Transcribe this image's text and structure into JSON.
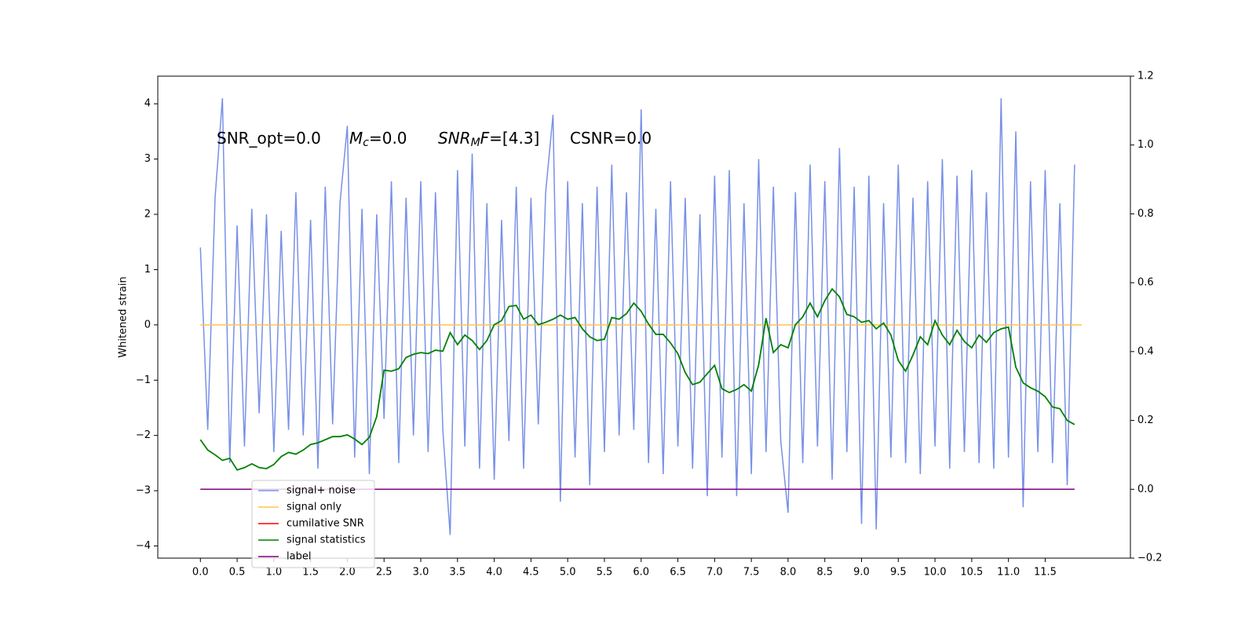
{
  "chart_data": {
    "type": "line",
    "ylabel": "Whitened strain",
    "annotations": [
      [
        {
          "text": "SNR_opt=0.0"
        }
      ],
      [
        {
          "text": "M",
          "style": "italic"
        },
        {
          "text": "c",
          "style": "sub"
        },
        {
          "text": "=0.0"
        }
      ],
      [
        {
          "text": "SNR",
          "style": "italic"
        },
        {
          "text": "M",
          "style": "sub"
        },
        {
          "text": "F",
          "style": "italic"
        },
        {
          "text": "=[4.3]"
        }
      ],
      [
        {
          "text": "CSNR=0.0"
        }
      ]
    ],
    "x": [
      0.0,
      0.1,
      0.2,
      0.3,
      0.4,
      0.5,
      0.6,
      0.7,
      0.8,
      0.9,
      1.0,
      1.1,
      1.2,
      1.3,
      1.4,
      1.5,
      1.6,
      1.7,
      1.8,
      1.9,
      2.0,
      2.1,
      2.2,
      2.3,
      2.4,
      2.5,
      2.6,
      2.7,
      2.8,
      2.9,
      3.0,
      3.1,
      3.2,
      3.3,
      3.4,
      3.5,
      3.6,
      3.7,
      3.8,
      3.9,
      4.0,
      4.1,
      4.2,
      4.3,
      4.4,
      4.5,
      4.6,
      4.7,
      4.8,
      4.9,
      5.0,
      5.1,
      5.2,
      5.3,
      5.4,
      5.5,
      5.6,
      5.7,
      5.8,
      5.9,
      6.0,
      6.1,
      6.2,
      6.3,
      6.4,
      6.5,
      6.6,
      6.7,
      6.8,
      6.9,
      7.0,
      7.1,
      7.2,
      7.3,
      7.4,
      7.5,
      7.6,
      7.7,
      7.8,
      7.9,
      8.0,
      8.1,
      8.2,
      8.3,
      8.4,
      8.5,
      8.6,
      8.7,
      8.8,
      8.9,
      9.0,
      9.1,
      9.2,
      9.3,
      9.4,
      9.5,
      9.6,
      9.7,
      9.8,
      9.9,
      10.0,
      10.1,
      10.2,
      10.3,
      10.4,
      10.5,
      10.6,
      10.7,
      10.8,
      10.9,
      11.0,
      11.1,
      11.2,
      11.3,
      11.4,
      11.5,
      11.6,
      11.7,
      11.8,
      11.9
    ],
    "series": [
      {
        "name": "signal+ noise",
        "color": "#7890e6",
        "axis": "y",
        "values": [
          1.4,
          -1.9,
          2.3,
          4.1,
          -2.5,
          1.8,
          -2.2,
          2.1,
          -1.6,
          2.0,
          -2.3,
          1.7,
          -1.9,
          2.4,
          -2.0,
          1.9,
          -2.6,
          2.5,
          -1.8,
          2.2,
          3.6,
          -2.4,
          2.1,
          -2.7,
          2.0,
          -1.7,
          2.6,
          -2.5,
          2.3,
          -2.0,
          2.6,
          -2.3,
          2.4,
          -1.9,
          -3.8,
          2.8,
          -2.2,
          3.1,
          -2.6,
          2.2,
          -2.8,
          1.9,
          -2.1,
          2.5,
          -2.6,
          2.3,
          -1.8,
          2.4,
          3.8,
          -3.2,
          2.6,
          -2.4,
          2.2,
          -2.9,
          2.5,
          -2.3,
          2.9,
          -2.0,
          2.4,
          -1.9,
          3.9,
          -2.5,
          2.1,
          -2.7,
          2.6,
          -2.2,
          2.3,
          -2.6,
          2.0,
          -3.1,
          2.7,
          -2.4,
          2.8,
          -3.1,
          2.2,
          -2.7,
          3.0,
          -2.3,
          2.5,
          -2.1,
          -3.4,
          2.4,
          -2.5,
          2.9,
          -2.2,
          2.6,
          -2.8,
          3.2,
          -2.3,
          2.5,
          -3.6,
          2.7,
          -3.7,
          2.2,
          -2.4,
          2.9,
          -2.5,
          2.3,
          -2.7,
          2.6,
          -2.2,
          3.0,
          -2.6,
          2.7,
          -2.3,
          2.8,
          -2.5,
          2.4,
          -2.6,
          4.1,
          -2.4,
          3.5,
          -3.3,
          2.6,
          -2.3,
          2.8,
          -2.5,
          2.2,
          -2.9,
          2.9
        ]
      },
      {
        "name": "signal only",
        "color": "#ffc44d",
        "axis": "y",
        "x": [
          0.0,
          12.0
        ],
        "values": [
          0,
          0
        ]
      },
      {
        "name": "cumilative SNR",
        "color": "#ff0000",
        "axis": "y2"
      },
      {
        "name": "signal statistics",
        "color": "#008000",
        "axis": "y2",
        "values": [
          0.144,
          0.114,
          0.1,
          0.084,
          0.09,
          0.056,
          0.063,
          0.074,
          0.063,
          0.06,
          0.072,
          0.095,
          0.107,
          0.102,
          0.114,
          0.13,
          0.135,
          0.144,
          0.153,
          0.153,
          0.158,
          0.146,
          0.13,
          0.151,
          0.211,
          0.346,
          0.343,
          0.35,
          0.383,
          0.392,
          0.397,
          0.394,
          0.404,
          0.401,
          0.455,
          0.42,
          0.448,
          0.432,
          0.406,
          0.432,
          0.478,
          0.49,
          0.531,
          0.534,
          0.494,
          0.506,
          0.478,
          0.485,
          0.494,
          0.506,
          0.494,
          0.499,
          0.466,
          0.443,
          0.432,
          0.436,
          0.499,
          0.494,
          0.51,
          0.541,
          0.517,
          0.48,
          0.45,
          0.45,
          0.425,
          0.394,
          0.339,
          0.304,
          0.311,
          0.336,
          0.36,
          0.292,
          0.281,
          0.29,
          0.304,
          0.285,
          0.362,
          0.497,
          0.397,
          0.42,
          0.411,
          0.478,
          0.501,
          0.541,
          0.501,
          0.548,
          0.582,
          0.559,
          0.508,
          0.501,
          0.485,
          0.49,
          0.466,
          0.483,
          0.448,
          0.374,
          0.343,
          0.39,
          0.443,
          0.42,
          0.49,
          0.448,
          0.42,
          0.462,
          0.429,
          0.411,
          0.448,
          0.427,
          0.455,
          0.466,
          0.471,
          0.355,
          0.309,
          0.295,
          0.285,
          0.269,
          0.239,
          0.234,
          0.2,
          0.188
        ]
      },
      {
        "name": "label",
        "color": "#800080",
        "axis": "y2",
        "x": [
          0.0,
          11.9
        ],
        "values": [
          0,
          0
        ]
      }
    ],
    "xlim": [
      -0.58,
      12.66
    ],
    "ylim": [
      -4.22,
      4.5
    ],
    "y2lim": [
      -0.2,
      1.2
    ],
    "xticks": [
      {
        "value": 0,
        "label": "0.0"
      },
      0.5,
      {
        "value": 1,
        "label": "1.0"
      },
      1.5,
      {
        "value": 2,
        "label": "2.0"
      },
      2.5,
      {
        "value": 3,
        "label": "3.0"
      },
      3.5,
      {
        "value": 4,
        "label": "4.0"
      },
      4.5,
      {
        "value": 5,
        "label": "5.0"
      },
      5.5,
      {
        "value": 6,
        "label": "6.0"
      },
      6.5,
      {
        "value": 7,
        "label": "7.0"
      },
      7.5,
      {
        "value": 8,
        "label": "8.0"
      },
      8.5,
      {
        "value": 9,
        "label": "9.0"
      },
      9.5,
      {
        "value": 10,
        "label": "10.0"
      },
      10.5,
      {
        "value": 11,
        "label": "11.0"
      },
      11.5
    ],
    "yticks": [
      {
        "value": -4,
        "label": "−4"
      },
      {
        "value": -3,
        "label": "−3"
      },
      {
        "value": -2,
        "label": "−2"
      },
      {
        "value": -1,
        "label": "−1"
      },
      0,
      1,
      2,
      3,
      4
    ],
    "y2ticks": [
      {
        "value": -0.2,
        "label": "−0.2"
      },
      {
        "value": 0,
        "label": "0.0"
      },
      0.2,
      0.4,
      0.6,
      0.8,
      {
        "value": 1,
        "label": "1.0"
      },
      1.2
    ],
    "grid": false,
    "legend": "lower left"
  }
}
